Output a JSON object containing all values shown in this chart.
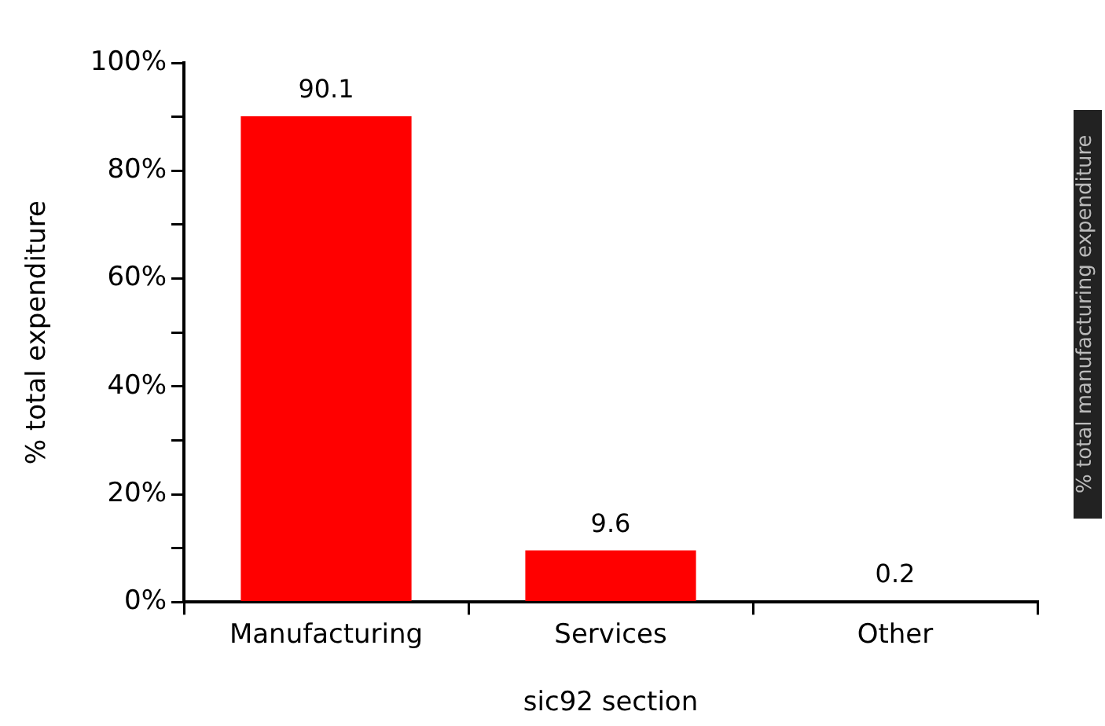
{
  "chart_data": {
    "type": "bar",
    "categories": [
      "Manufacturing",
      "Services",
      "Other"
    ],
    "values": [
      90.1,
      9.6,
      0.2
    ],
    "color": "#ff0000",
    "data_labels": true,
    "xlabel": "sic92 section",
    "ylabel": "% total expenditure",
    "annotations": [
      "% total manufacturing expenditure"
    ],
    "ylim": [
      0,
      100
    ],
    "yticks": [
      {
        "value": 0,
        "label": "0%"
      },
      {
        "value": 10,
        "label": null
      },
      {
        "value": 20,
        "label": "20%"
      },
      {
        "value": 30,
        "label": null
      },
      {
        "value": 40,
        "label": "40%"
      },
      {
        "value": 50,
        "label": null
      },
      {
        "value": 60,
        "label": "60%"
      },
      {
        "value": 70,
        "label": null
      },
      {
        "value": 80,
        "label": "80%"
      },
      {
        "value": 90,
        "label": null
      },
      {
        "value": 100,
        "label": "100%"
      }
    ],
    "grid": false,
    "legend": false
  }
}
